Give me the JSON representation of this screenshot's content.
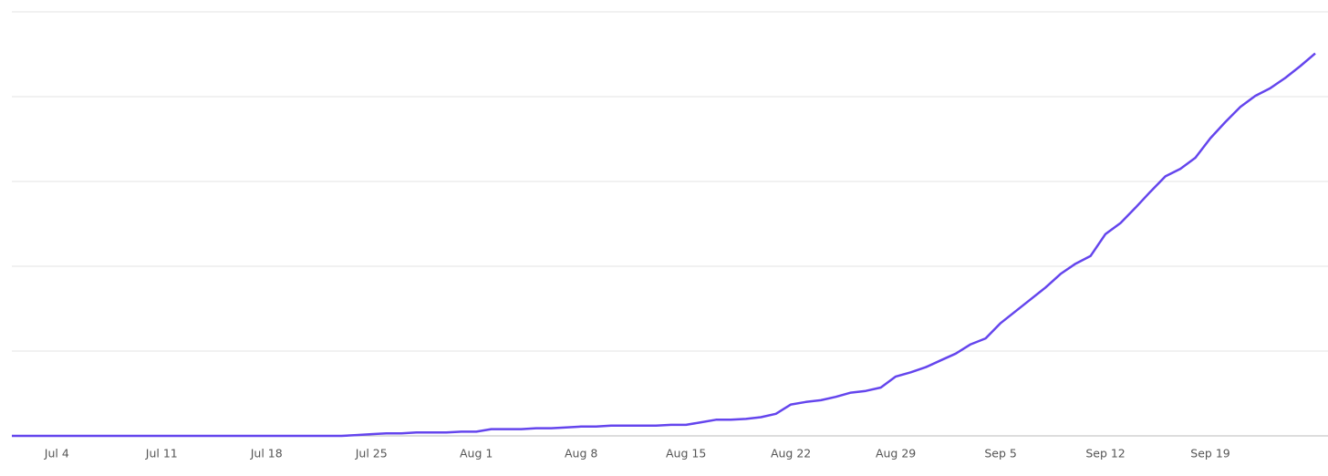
{
  "chart_data": {
    "type": "line",
    "categories": [
      null,
      null,
      null,
      "Jul 4",
      null,
      null,
      null,
      null,
      null,
      null,
      "Jul 11",
      null,
      null,
      null,
      null,
      null,
      null,
      "Jul 18",
      null,
      null,
      null,
      null,
      null,
      null,
      "Jul 25",
      null,
      null,
      null,
      null,
      null,
      null,
      "Aug 1",
      null,
      null,
      null,
      null,
      null,
      null,
      "Aug 8",
      null,
      null,
      null,
      null,
      null,
      null,
      "Aug 15",
      null,
      null,
      null,
      null,
      null,
      null,
      "Aug 22",
      null,
      null,
      null,
      null,
      null,
      null,
      "Aug 29",
      null,
      null,
      null,
      null,
      null,
      null,
      "Sep 5",
      null,
      null,
      null,
      null,
      null,
      null,
      "Sep 12",
      null,
      null,
      null,
      null,
      null,
      null,
      "Sep 19",
      null,
      null,
      null,
      null,
      null,
      null,
      null
    ],
    "series": [
      {
        "color": "#6445ed",
        "values": [
          0,
          0,
          0,
          0,
          0,
          0,
          0,
          0,
          0,
          0,
          0,
          0,
          0,
          0,
          0,
          0,
          0,
          0,
          0,
          0,
          0,
          0,
          0,
          0.01,
          0.02,
          0.03,
          0.03,
          0.04,
          0.04,
          0.04,
          0.05,
          0.05,
          0.08,
          0.08,
          0.08,
          0.09,
          0.09,
          0.1,
          0.11,
          0.11,
          0.12,
          0.12,
          0.12,
          0.12,
          0.13,
          0.13,
          0.16,
          0.19,
          0.19,
          0.2,
          0.22,
          0.26,
          0.37,
          0.4,
          0.42,
          0.46,
          0.51,
          0.53,
          0.57,
          0.7,
          0.75,
          0.81,
          0.89,
          0.97,
          1.08,
          1.15,
          1.33,
          1.47,
          1.61,
          1.75,
          1.91,
          2.03,
          2.12,
          2.38,
          2.51,
          2.69,
          2.88,
          3.06,
          3.15,
          3.28,
          3.51,
          3.7,
          3.88,
          4.01,
          4.1,
          4.22,
          4.36,
          4.51
        ]
      }
    ],
    "ylim": [
      0,
      5
    ],
    "yticks": [
      0,
      1,
      2,
      3,
      4,
      5
    ],
    "grid": true
  }
}
